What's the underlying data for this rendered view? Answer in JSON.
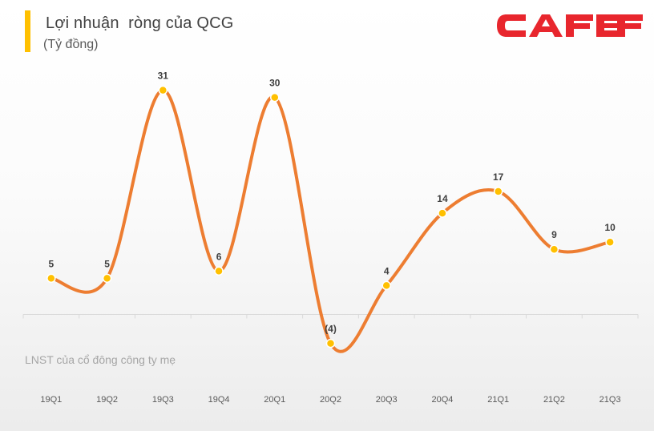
{
  "header": {
    "title": "Lợi nhuận  ròng của QCG",
    "subtitle": "(Tỷ đồng)"
  },
  "logo": {
    "text": "CAFEF",
    "color": "#e8262d"
  },
  "footnote": "LNST của cổ đông công ty mẹ",
  "colors": {
    "line": "#ed7d31",
    "marker": "#ffc000",
    "accent": "#ffc000"
  },
  "chart_data": {
    "type": "line",
    "title": "Lợi nhuận  ròng của QCG",
    "ylabel": "(Tỷ đồng)",
    "categories": [
      "19Q1",
      "19Q2",
      "19Q3",
      "19Q4",
      "20Q1",
      "20Q2",
      "20Q3",
      "20Q4",
      "21Q1",
      "21Q2",
      "21Q3"
    ],
    "series": [
      {
        "values": [
          5,
          5,
          31,
          6,
          30,
          -4,
          4,
          14,
          17,
          9,
          10
        ]
      }
    ],
    "data_labels": [
      "5",
      "5",
      "31",
      "6",
      "30",
      "(4)",
      "4",
      "14",
      "17",
      "9",
      "10"
    ],
    "smooth": true,
    "grid": false
  }
}
